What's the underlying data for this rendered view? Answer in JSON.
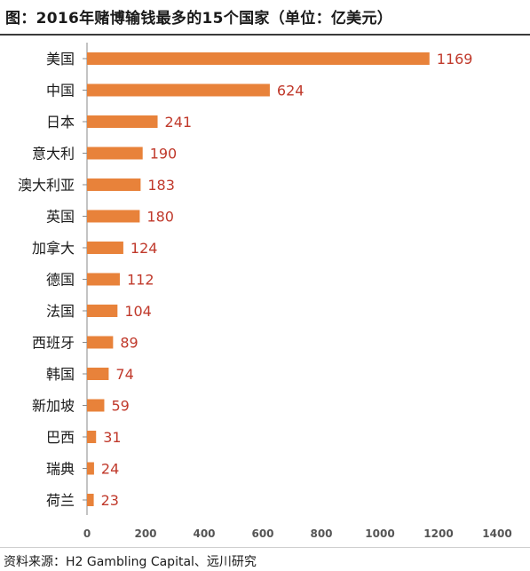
{
  "header": {
    "title": "图：2016年赌博输钱最多的15个国家（单位：亿美元）"
  },
  "footer": {
    "source": "资料来源：H2 Gambling Capital、远川研究"
  },
  "colors": {
    "bar": "#E8823A",
    "value_label": "#c0392b",
    "axis": "#888888"
  },
  "chart_data": {
    "type": "bar",
    "orientation": "horizontal",
    "categories": [
      "美国",
      "中国",
      "日本",
      "意大利",
      "澳大利亚",
      "英国",
      "加拿大",
      "德国",
      "法国",
      "西班牙",
      "韩国",
      "新加坡",
      "巴西",
      "瑞典",
      "荷兰"
    ],
    "values": [
      1169,
      624,
      241,
      190,
      183,
      180,
      124,
      112,
      104,
      89,
      74,
      59,
      31,
      24,
      23
    ],
    "xlim": [
      0,
      1400
    ],
    "xticks": [
      0,
      200,
      400,
      600,
      800,
      1000,
      1200,
      1400
    ],
    "title": "图：2016年赌博输钱最多的15个国家（单位：亿美元）",
    "xlabel": "",
    "ylabel": "",
    "grid": false,
    "legend": "none"
  }
}
